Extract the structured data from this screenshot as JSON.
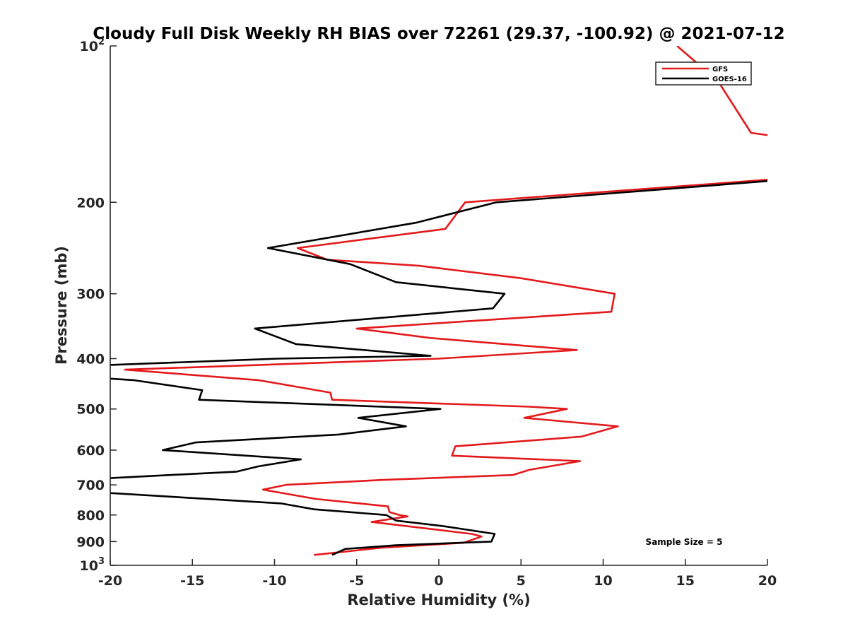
{
  "chart_data": {
    "type": "line",
    "title": "Cloudy Full Disk Weekly RH BIAS over 72261 (29.37, -100.92) @ 2021-07-12",
    "xlabel": "Relative Humidity (%)",
    "ylabel": "Pressure (mb)",
    "xlim": [
      -20,
      20
    ],
    "ylim": [
      100,
      1000
    ],
    "y_scale": "log",
    "y_reversed": true,
    "grid": false,
    "legend_position": "top-right",
    "x_ticks": [
      "-20",
      "-15",
      "-10",
      "-5",
      "0",
      "5",
      "10",
      "15",
      "20"
    ],
    "y_ticks": [
      {
        "value": 100,
        "base": "10",
        "exp": "2"
      },
      {
        "value": 200,
        "label": "200"
      },
      {
        "value": 300,
        "label": "300"
      },
      {
        "value": 400,
        "label": "400"
      },
      {
        "value": 500,
        "label": "500"
      },
      {
        "value": 600,
        "label": "600"
      },
      {
        "value": 700,
        "label": "700"
      },
      {
        "value": 800,
        "label": "800"
      },
      {
        "value": 900,
        "label": "900"
      },
      {
        "value": 1000,
        "base": "10",
        "exp": "3"
      }
    ],
    "annotation": "Sample Size = 5",
    "series": [
      {
        "name": "GFS",
        "color": "#e31a1c",
        "points": [
          [
            14.5,
            100
          ],
          [
            17,
            117
          ],
          [
            19,
            147
          ],
          [
            21,
            150
          ],
          [
            21,
            180
          ],
          [
            1.6,
            200
          ],
          [
            0.4,
            225
          ],
          [
            -8.6,
            245
          ],
          [
            -6.8,
            258
          ],
          [
            -1.2,
            265
          ],
          [
            5,
            280
          ],
          [
            10.7,
            300
          ],
          [
            10.5,
            325
          ],
          [
            -5,
            350
          ],
          [
            -0.5,
            365
          ],
          [
            8.4,
            385
          ],
          [
            0,
            400
          ],
          [
            -19.1,
            420
          ],
          [
            -11,
            440
          ],
          [
            -6.6,
            465
          ],
          [
            -6.5,
            480
          ],
          [
            5.5,
            495
          ],
          [
            7.8,
            500
          ],
          [
            5.2,
            520
          ],
          [
            10.9,
            540
          ],
          [
            8.7,
            565
          ],
          [
            1,
            590
          ],
          [
            0.8,
            615
          ],
          [
            8.6,
            630
          ],
          [
            5.5,
            655
          ],
          [
            4.5,
            670
          ],
          [
            -3.5,
            685
          ],
          [
            -9.3,
            700
          ],
          [
            -10.7,
            715
          ],
          [
            -7.5,
            745
          ],
          [
            -3.1,
            770
          ],
          [
            -3,
            790
          ],
          [
            -2.4,
            800
          ],
          [
            -1.9,
            805
          ],
          [
            -4.1,
            825
          ],
          [
            2,
            870
          ],
          [
            2.6,
            880
          ],
          [
            1.5,
            905
          ],
          [
            -3.5,
            925
          ],
          [
            -7.6,
            955
          ]
        ]
      },
      {
        "name": "GOES-16",
        "color": "#000000",
        "points": [
          [
            21,
            181
          ],
          [
            3.5,
            200
          ],
          [
            -1.4,
            219
          ],
          [
            -10.4,
            245
          ],
          [
            -5.4,
            263
          ],
          [
            -2.6,
            285
          ],
          [
            4,
            300
          ],
          [
            3.3,
            320
          ],
          [
            -11.2,
            350
          ],
          [
            -8.7,
            375
          ],
          [
            -0.5,
            395
          ],
          [
            -9.8,
            400
          ],
          [
            -20.5,
            412
          ],
          [
            -20.5,
            436
          ],
          [
            -18.6,
            440
          ],
          [
            -14.4,
            460
          ],
          [
            -14.6,
            480
          ],
          [
            0.1,
            500
          ],
          [
            -4.9,
            520
          ],
          [
            -2,
            540
          ],
          [
            -6.1,
            560
          ],
          [
            -14.8,
            580
          ],
          [
            -16.8,
            600
          ],
          [
            -8.4,
            625
          ],
          [
            -11,
            645
          ],
          [
            -12.3,
            660
          ],
          [
            -20.3,
            680
          ],
          [
            -20.3,
            725
          ],
          [
            -9.6,
            760
          ],
          [
            -7.6,
            780
          ],
          [
            -3.2,
            800
          ],
          [
            -2.6,
            820
          ],
          [
            0.2,
            840
          ],
          [
            3.4,
            870
          ],
          [
            3.2,
            900
          ],
          [
            -2.6,
            915
          ],
          [
            -5.7,
            930
          ],
          [
            -6.5,
            955
          ]
        ]
      }
    ]
  }
}
